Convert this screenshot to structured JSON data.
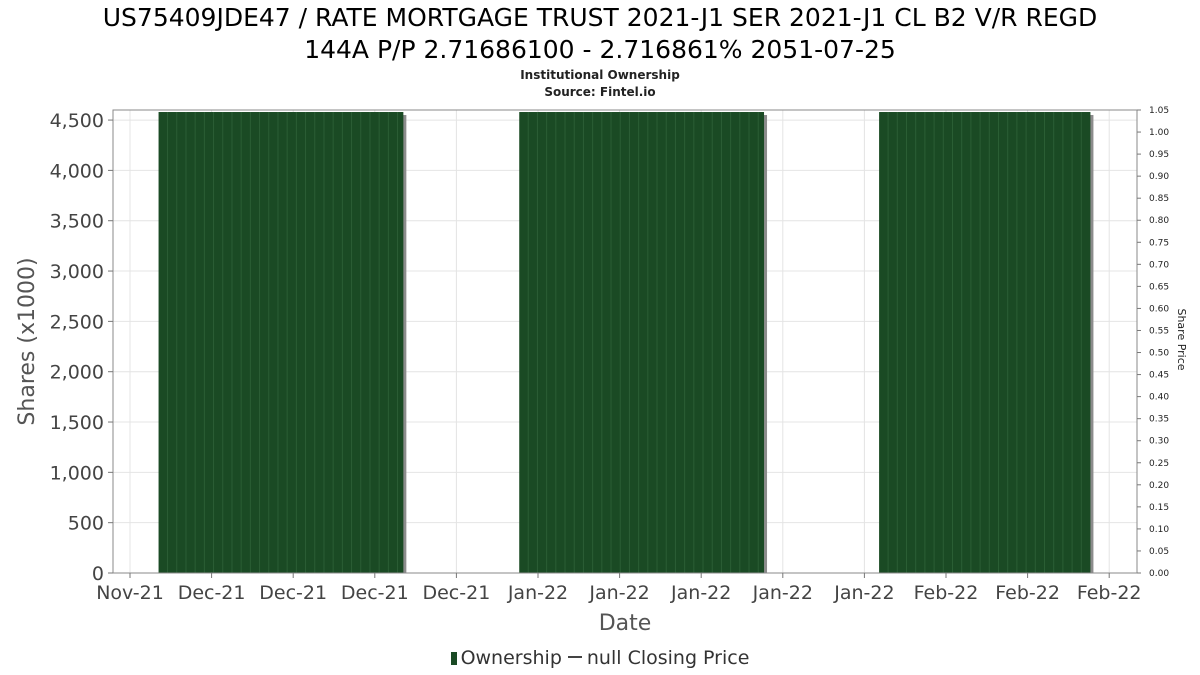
{
  "header": {
    "title_line1": "US75409JDE47 / RATE MORTGAGE TRUST 2021-J1 SER 2021-J1 CL B2 V/R REGD",
    "title_line2": "144A P/P 2.71686100 - 2.716861% 2051-07-25",
    "subtitle_line1": "Institutional Ownership",
    "subtitle_line2": "Source: Fintel.io"
  },
  "legend": {
    "ownership_label": "Ownership",
    "price_label": "null Closing Price"
  },
  "chart_data": {
    "type": "bar",
    "xlabel": "Date",
    "ylabel": "Shares (x1000)",
    "y2label": "Share Price",
    "x_tick_labels": [
      "Nov-21",
      "Dec-21",
      "Dec-21",
      "Dec-21",
      "Dec-21",
      "Jan-22",
      "Jan-22",
      "Jan-22",
      "Jan-22",
      "Jan-22",
      "Feb-22",
      "Feb-22",
      "Feb-22"
    ],
    "y_ticks": [
      0,
      500,
      1000,
      1500,
      2000,
      2500,
      3000,
      3500,
      4000,
      4500
    ],
    "y_tick_labels": [
      "0",
      "500",
      "1,000",
      "1,500",
      "2,000",
      "2,500",
      "3,000",
      "3,500",
      "4,000",
      "4,500"
    ],
    "ylim": [
      0,
      4600
    ],
    "y2_ticks": [
      "0.00",
      "0.05",
      "0.10",
      "0.15",
      "0.20",
      "0.25",
      "0.30",
      "0.35",
      "0.40",
      "0.45",
      "0.50",
      "0.55",
      "0.60",
      "0.65",
      "0.70",
      "0.75",
      "0.80",
      "0.85",
      "0.90",
      "0.95",
      "1.00",
      "1.05"
    ],
    "y2lim": [
      0,
      1.05
    ],
    "grid": true,
    "legend_position": "bottom",
    "bar_color": "#1a4a24",
    "series": [
      {
        "name": "Ownership",
        "blocks": [
          {
            "start_tick": 0.35,
            "end_tick": 3.35,
            "value": 4580
          },
          {
            "start_tick": 4.77,
            "end_tick": 7.77,
            "value": 4580
          },
          {
            "start_tick": 9.18,
            "end_tick": 11.77,
            "value": 4580
          }
        ]
      }
    ]
  }
}
